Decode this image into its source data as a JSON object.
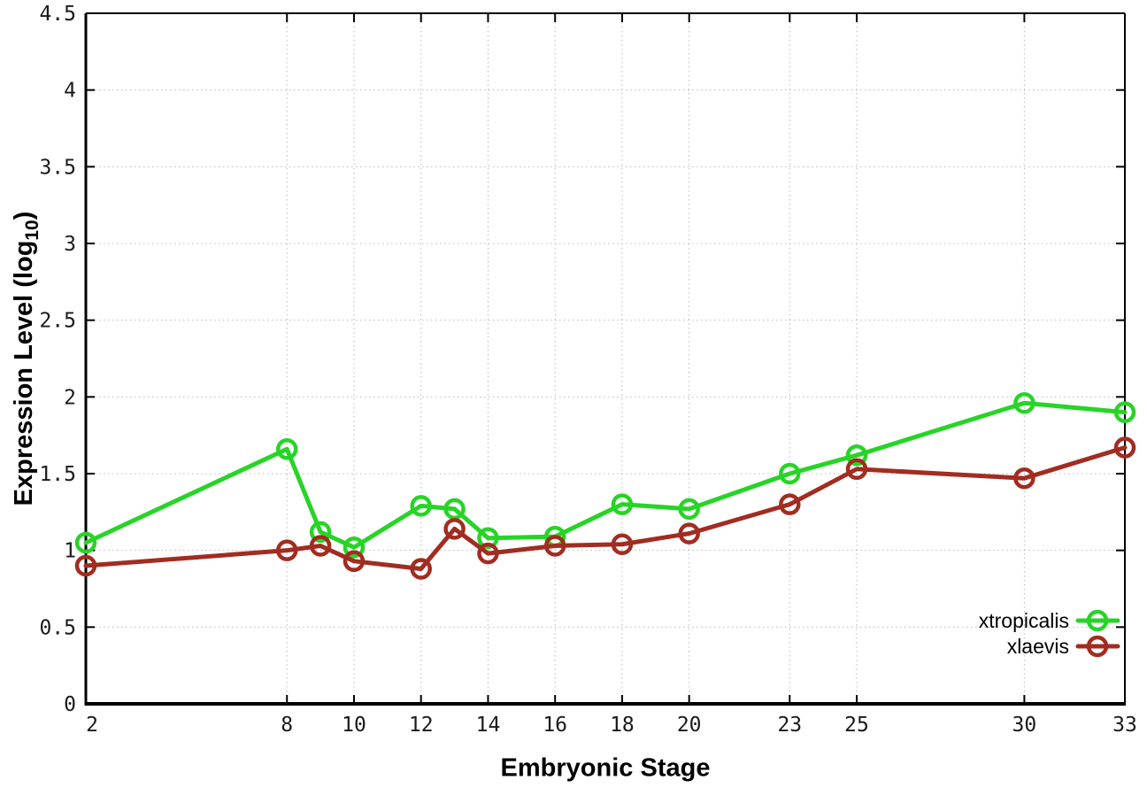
{
  "chart_data": {
    "type": "line",
    "x": [
      2,
      8,
      9,
      10,
      12,
      13,
      14,
      16,
      18,
      20,
      23,
      25,
      30,
      33
    ],
    "series": [
      {
        "name": "xtropicalis",
        "color": "#27d427",
        "values": [
          1.05,
          1.66,
          1.12,
          1.02,
          1.29,
          1.27,
          1.08,
          1.09,
          1.3,
          1.27,
          1.5,
          1.62,
          1.96,
          1.9
        ]
      },
      {
        "name": "xlaevis",
        "color": "#a22c21",
        "values": [
          0.9,
          1.0,
          1.03,
          0.93,
          0.88,
          1.14,
          0.98,
          1.03,
          1.04,
          1.11,
          1.3,
          1.53,
          1.47,
          1.67
        ]
      }
    ],
    "title": "",
    "xlabel": "Embryonic Stage",
    "ylabel_main": "Expression Level (log",
    "ylabel_sub": "10",
    "ylabel_close": ")",
    "xlim": [
      2,
      33
    ],
    "ylim": [
      0,
      4.5
    ],
    "xticks": {
      "values": [
        2,
        8,
        10,
        12,
        14,
        16,
        18,
        20,
        23,
        25,
        30,
        33
      ],
      "labels": [
        "2",
        "8",
        "10",
        "12",
        "14",
        "16",
        "18",
        "20",
        "23",
        "25",
        "30",
        "33"
      ]
    },
    "yticks": {
      "values": [
        0,
        0.5,
        1,
        1.5,
        2,
        2.5,
        3,
        3.5,
        4,
        4.5
      ],
      "labels": [
        "0",
        "0.5",
        "1",
        "1.5",
        "2",
        "2.5",
        "3",
        "3.5",
        "4",
        "4.5"
      ]
    },
    "grid": true,
    "legend_position": "bottom-right-inside",
    "style": {
      "grid_color": "#b8b8b8",
      "axis_color": "#000000",
      "tick_label_color": "#1a1a1a",
      "background": "#ffffff",
      "marker": "open-circle",
      "line_width": 5,
      "marker_radius": 10
    }
  }
}
